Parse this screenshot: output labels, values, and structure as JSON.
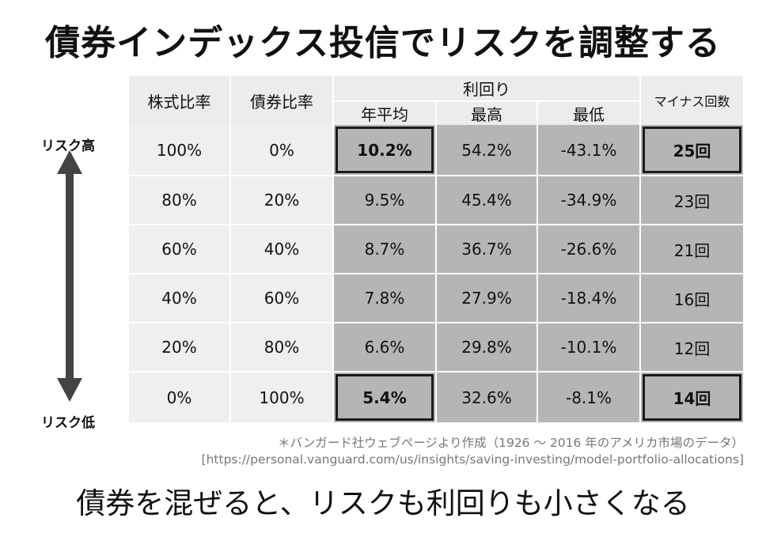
{
  "title": "債券インデックス投信でリスクを調整する",
  "risk_high": "リスク高",
  "risk_low": "リスク低",
  "table": {
    "col_stock": "株式比率",
    "col_bond": "債券比率",
    "col_yield": "利回り",
    "col_avg": "年平均",
    "col_max": "最高",
    "col_min": "最低",
    "col_neg": "マイナス回数",
    "rows": [
      {
        "stock": "100%",
        "bond": "0%",
        "avg": "10.2%",
        "max": "54.2%",
        "min": "-43.1%",
        "neg": "25回"
      },
      {
        "stock": "80%",
        "bond": "20%",
        "avg": "9.5%",
        "max": "45.4%",
        "min": "-34.9%",
        "neg": "23回"
      },
      {
        "stock": "60%",
        "bond": "40%",
        "avg": "8.7%",
        "max": "36.7%",
        "min": "-26.6%",
        "neg": "21回"
      },
      {
        "stock": "40%",
        "bond": "60%",
        "avg": "7.8%",
        "max": "27.9%",
        "min": "-18.4%",
        "neg": "16回"
      },
      {
        "stock": "20%",
        "bond": "80%",
        "avg": "6.6%",
        "max": "29.8%",
        "min": "-10.1%",
        "neg": "12回"
      },
      {
        "stock": "0%",
        "bond": "100%",
        "avg": "5.4%",
        "max": "32.6%",
        "min": "-8.1%",
        "neg": "14回"
      }
    ]
  },
  "source_note": "＊バンガード社ウェブページより作成（1926 〜 2016 年のアメリカ市場のデータ）",
  "source_url": "[https://personal.vanguard.com/us/insights/saving-investing/model-portfolio-allocations]",
  "conclusion": "債券を混ぜると、リスクも利回りも小さくなる",
  "colors": {
    "shaded": "#b5b5b5",
    "light": "#efefef",
    "frame": "#1a1a1a"
  }
}
